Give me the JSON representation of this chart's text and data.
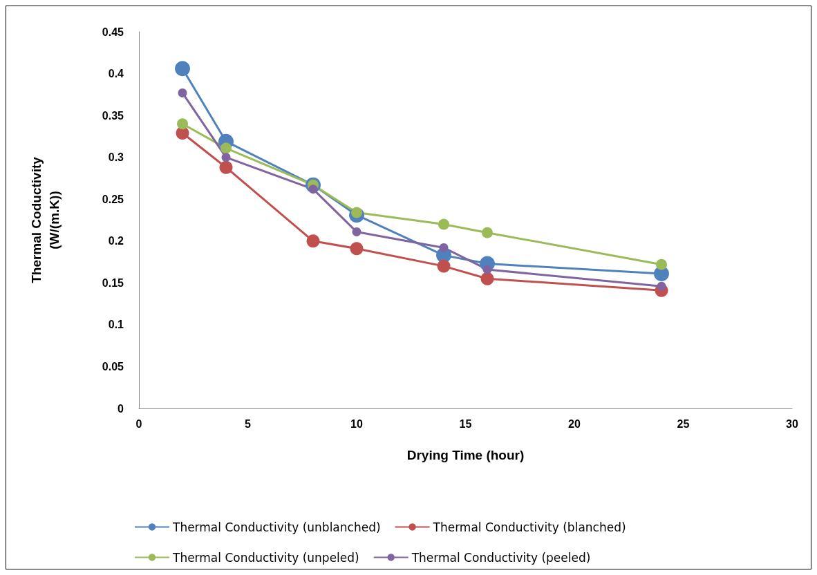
{
  "chart_data": {
    "type": "line",
    "xlabel": "Drying Time (hour)",
    "ylabel": "Thermal Coductivity (W/(m.K))",
    "x": [
      2,
      4,
      8,
      10,
      14,
      16,
      24
    ],
    "series": [
      {
        "name": "Thermal Conductivity (unblanched)",
        "color": "#4f81bd",
        "values": [
          0.406,
          0.319,
          0.267,
          0.231,
          0.183,
          0.173,
          0.161
        ]
      },
      {
        "name": "Thermal Conductivity (blanched)",
        "color": "#c0504d",
        "values": [
          0.329,
          0.288,
          0.2,
          0.191,
          0.17,
          0.155,
          0.141
        ]
      },
      {
        "name": "Thermal Conductivity (unpeled)",
        "color": "#9bbb59",
        "values": [
          0.34,
          0.311,
          0.267,
          0.234,
          0.22,
          0.21,
          0.172
        ]
      },
      {
        "name": "Thermal Conductivity (peeled)",
        "color": "#8064a2",
        "values": [
          0.377,
          0.3,
          0.262,
          0.211,
          0.192,
          0.166,
          0.146
        ]
      }
    ],
    "xlim": [
      0,
      30
    ],
    "xticks": [
      0,
      5,
      10,
      15,
      20,
      25,
      30
    ],
    "ylim": [
      0,
      0.45
    ],
    "yticks": [
      0,
      0.05,
      0.1,
      0.15,
      0.2,
      0.25,
      0.3,
      0.35,
      0.4,
      0.45
    ],
    "grid": false,
    "legend": "bottom",
    "marker": "circle",
    "line_style": "solid"
  }
}
